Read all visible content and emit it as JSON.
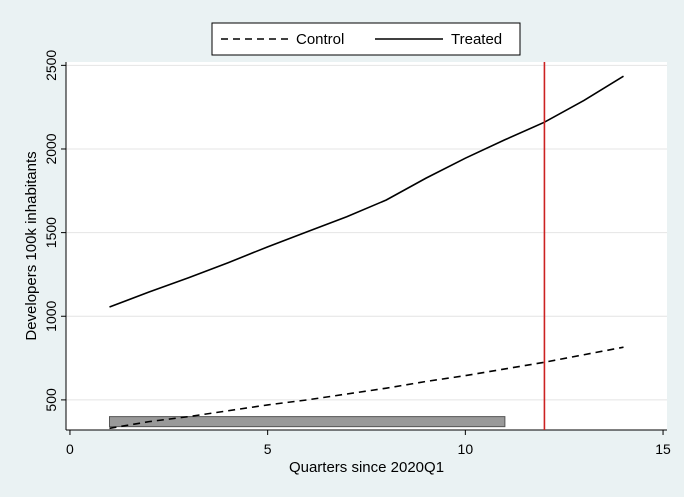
{
  "chart_data": {
    "type": "line",
    "xlabel": "Quarters since 2020Q1",
    "ylabel": "Developers 100k inhabitants",
    "xlim": [
      -0.1,
      15.1
    ],
    "ylim": [
      320,
      2520
    ],
    "xticks": [
      0,
      5,
      10,
      15
    ],
    "yticks": [
      500,
      1000,
      1500,
      2000,
      2500
    ],
    "grid": true,
    "legend_position": "top-center",
    "series": [
      {
        "name": "Control",
        "style": "dashed",
        "color": "#000000",
        "x": [
          1,
          2,
          3,
          4,
          5,
          6,
          7,
          8,
          9,
          10,
          11,
          12,
          13,
          14
        ],
        "y": [
          330,
          370,
          400,
          435,
          470,
          500,
          535,
          570,
          610,
          645,
          685,
          725,
          770,
          815
        ]
      },
      {
        "name": "Treated",
        "style": "solid",
        "color": "#000000",
        "x": [
          1,
          2,
          3,
          4,
          5,
          6,
          7,
          8,
          9,
          10,
          11,
          12,
          13,
          14
        ],
        "y": [
          1055,
          1145,
          1230,
          1320,
          1415,
          1505,
          1595,
          1695,
          1825,
          1945,
          2055,
          2160,
          2290,
          2435
        ]
      }
    ],
    "annotations": [
      {
        "type": "vline",
        "x": 12,
        "color": "#cc2222"
      },
      {
        "type": "bar",
        "x_start": 1,
        "x_end": 11,
        "y_low": 340,
        "y_high": 400,
        "color": "#999999"
      }
    ]
  }
}
